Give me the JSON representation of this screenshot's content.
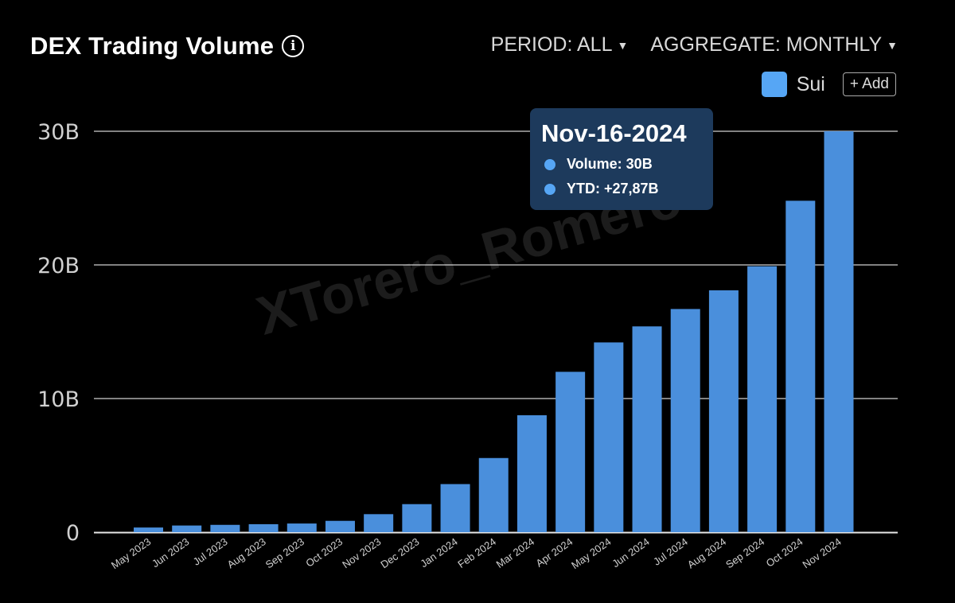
{
  "header": {
    "title": "DEX Trading Volume",
    "info_icon": "info-icon",
    "period_label": "PERIOD: ALL",
    "aggregate_label": "AGGREGATE: MONTHLY"
  },
  "legend": {
    "series_label": "Sui",
    "add_label": "+ Add",
    "color": "#56a6f5"
  },
  "tooltip": {
    "date": "Nov-16-2024",
    "volume": "Volume: 30B",
    "ytd": "YTD: +27,87B"
  },
  "watermark": "XTorero_Romero",
  "chart_data": {
    "type": "bar",
    "categories": [
      "May 2023",
      "Jun 2023",
      "Jul 2023",
      "Aug 2023",
      "Sep 2023",
      "Oct 2023",
      "Nov 2023",
      "Dec 2023",
      "Jan 2024",
      "Feb 2024",
      "Mar 2024",
      "Apr 2024",
      "May 2024",
      "Jun 2024",
      "Jul 2024",
      "Aug 2024",
      "Sep 2024",
      "Oct 2024",
      "Nov 2024"
    ],
    "values": [
      0.35,
      0.5,
      0.55,
      0.6,
      0.65,
      0.85,
      1.35,
      2.1,
      3.6,
      5.55,
      8.75,
      12.0,
      14.2,
      15.4,
      16.7,
      18.1,
      19.9,
      24.8,
      30.0
    ],
    "unit": "B",
    "title": "DEX Trading Volume",
    "ylim": [
      0,
      30
    ],
    "yticks": [
      0,
      10,
      20,
      30
    ],
    "ytick_labels": [
      "0",
      "10B",
      "20B",
      "30B"
    ],
    "grid": true,
    "bar_color": "#4a8fdc"
  }
}
